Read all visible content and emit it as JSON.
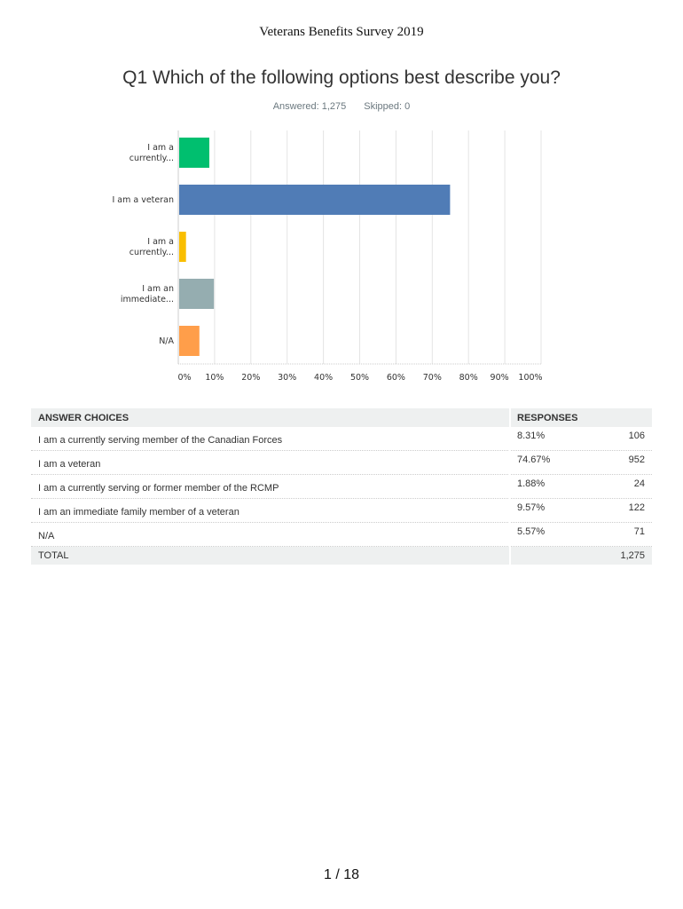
{
  "header": {
    "title": "Veterans Benefits Survey 2019"
  },
  "question": {
    "title": "Q1 Which of the following options best describe you?",
    "answered": "Answered: 1,275",
    "skipped": "Skipped: 0"
  },
  "chart_data": {
    "type": "bar",
    "orientation": "horizontal",
    "categories": [
      "I am a currently...",
      "I am a veteran",
      "I am a currently...",
      "I am an immediate...",
      "N/A"
    ],
    "values": [
      8.31,
      74.67,
      1.88,
      9.57,
      5.57
    ],
    "colors": [
      "#00bf6f",
      "#507cb6",
      "#f9be00",
      "#95adb0",
      "#ff9e4a"
    ],
    "xlim": [
      0,
      100
    ],
    "xticks": [
      "0%",
      "10%",
      "20%",
      "30%",
      "40%",
      "50%",
      "60%",
      "70%",
      "80%",
      "90%",
      "100%"
    ],
    "grid": true
  },
  "table": {
    "headers": [
      "ANSWER CHOICES",
      "RESPONSES"
    ],
    "rows": [
      {
        "choice": "I am a currently serving member of the Canadian Forces",
        "pct": "8.31%",
        "count": "106"
      },
      {
        "choice": "I am a veteran",
        "pct": "74.67%",
        "count": "952"
      },
      {
        "choice": "I am a currently serving or former member of the RCMP",
        "pct": "1.88%",
        "count": "24"
      },
      {
        "choice": "I am an immediate family member of a veteran",
        "pct": "9.57%",
        "count": "122"
      },
      {
        "choice": "N/A",
        "pct": "5.57%",
        "count": "71"
      }
    ],
    "total_label": "TOTAL",
    "total": "1,275"
  },
  "footer": {
    "page": "1 / 18"
  }
}
